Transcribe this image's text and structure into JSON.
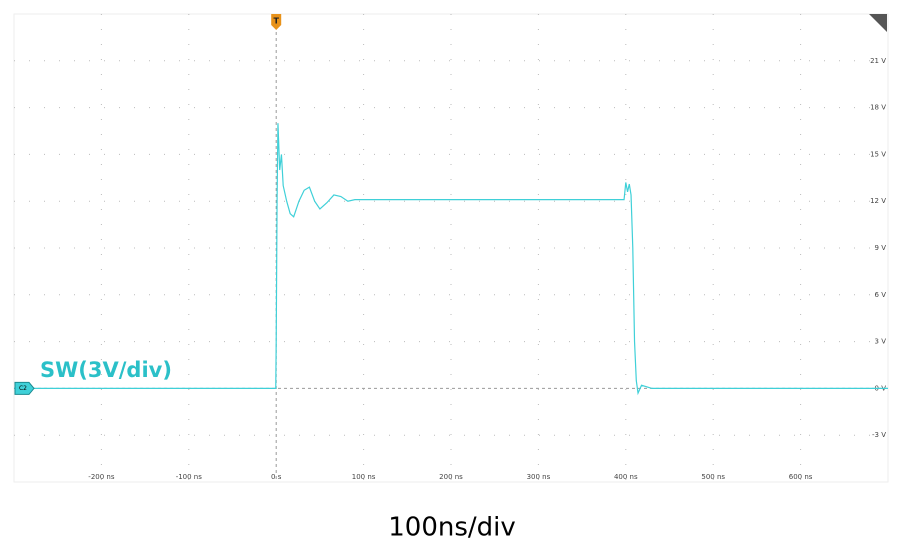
{
  "chart_data": {
    "type": "line",
    "annotation": "SW(3V/div)",
    "caption": "100ns/div",
    "trigger_label": "T",
    "channel_label": "C2",
    "x": [
      -300,
      -0.5,
      0,
      1,
      2,
      4,
      6,
      8,
      12,
      16,
      20,
      26,
      32,
      38,
      44,
      50,
      58,
      66,
      74,
      82,
      90,
      100,
      150,
      200,
      250,
      300,
      350,
      398,
      400,
      402,
      404,
      406,
      408,
      410,
      412,
      414,
      418,
      430,
      700
    ],
    "series": [
      {
        "name": "SW",
        "color": "#3fd0d8",
        "values": [
          0,
          0,
          3,
          12,
          17,
          14,
          15,
          13,
          12,
          11.2,
          11,
          12,
          12.7,
          12.9,
          12,
          11.5,
          11.9,
          12.4,
          12.3,
          12,
          12.1,
          12.1,
          12.1,
          12.1,
          12.1,
          12.1,
          12.1,
          12.1,
          13.2,
          12.6,
          13.1,
          12.4,
          9,
          3,
          0.5,
          -0.3,
          0.2,
          0,
          0
        ]
      }
    ],
    "xlim": [
      -300,
      700
    ],
    "ylim": [
      -6,
      24
    ],
    "xticks": [
      {
        "value": -200,
        "label": "-200 ns"
      },
      {
        "value": -100,
        "label": "-100 ns"
      },
      {
        "value": 0,
        "label": "0 s"
      },
      {
        "value": 100,
        "label": "100 ns"
      },
      {
        "value": 200,
        "label": "200 ns"
      },
      {
        "value": 300,
        "label": "300 ns"
      },
      {
        "value": 400,
        "label": "400 ns"
      },
      {
        "value": 500,
        "label": "500 ns"
      },
      {
        "value": 600,
        "label": "600 ns"
      }
    ],
    "yticks": [
      {
        "value": -3,
        "label": "-3 V"
      },
      {
        "value": 0,
        "label": "0 V"
      },
      {
        "value": 3,
        "label": "3 V"
      },
      {
        "value": 6,
        "label": "6 V"
      },
      {
        "value": 9,
        "label": "9 V"
      },
      {
        "value": 12,
        "label": "12 V"
      },
      {
        "value": 15,
        "label": "15 V"
      },
      {
        "value": 18,
        "label": "18 V"
      },
      {
        "value": 21,
        "label": "21 V"
      }
    ],
    "grid": true
  }
}
